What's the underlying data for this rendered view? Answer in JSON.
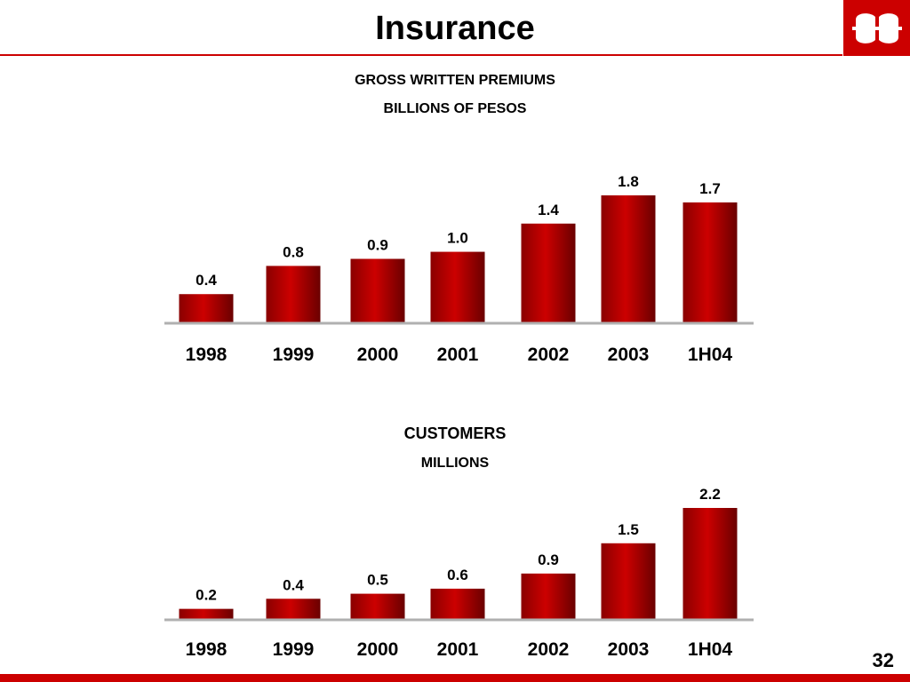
{
  "slide": {
    "title": "Insurance",
    "page_number": "32",
    "accent_color": "#cc0000"
  },
  "chart_data": [
    {
      "type": "bar",
      "title": "GROSS WRITTEN PREMIUMS",
      "subtitle": "BILLIONS OF PESOS",
      "categories": [
        "1998",
        "1999",
        "2000",
        "2001",
        "2002",
        "2003",
        "1H04"
      ],
      "values": [
        0.4,
        0.8,
        0.9,
        1.0,
        1.4,
        1.8,
        1.7
      ],
      "value_labels": [
        "0.4",
        "0.8",
        "0.9",
        "1.0",
        "1.4",
        "1.8",
        "1.7"
      ],
      "ylim": [
        0,
        1.8
      ],
      "grid": false,
      "bar_color": "#cc0000"
    },
    {
      "type": "bar",
      "title": "CUSTOMERS",
      "subtitle": "MILLIONS",
      "categories": [
        "1998",
        "1999",
        "2000",
        "2001",
        "2002",
        "2003",
        "1H04"
      ],
      "values": [
        0.2,
        0.4,
        0.5,
        0.6,
        0.9,
        1.5,
        2.2
      ],
      "value_labels": [
        "0.2",
        "0.4",
        "0.5",
        "0.6",
        "0.9",
        "1.5",
        "2.2"
      ],
      "ylim": [
        0,
        2.2
      ],
      "grid": false,
      "bar_color": "#cc0000"
    }
  ]
}
